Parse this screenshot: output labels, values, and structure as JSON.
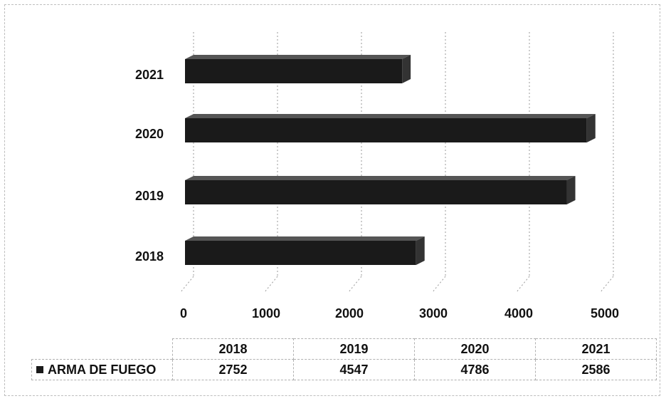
{
  "chart_data": {
    "type": "bar",
    "orientation": "horizontal",
    "three_d": true,
    "categories": [
      "2018",
      "2019",
      "2020",
      "2021"
    ],
    "series": [
      {
        "name": "ARMA DE FUEGO",
        "values": [
          2752,
          4547,
          4786,
          2586
        ],
        "color": "#1a1a1a"
      }
    ],
    "xlim": [
      0,
      5000
    ],
    "x_ticks": [
      "0",
      "1000",
      "2000",
      "3000",
      "4000",
      "5000"
    ],
    "grid": true,
    "legend": "data-table-below",
    "data_table": {
      "headers": [
        "2018",
        "2019",
        "2020",
        "2021"
      ],
      "rows": [
        {
          "label": "ARMA DE FUEGO",
          "values": [
            "2752",
            "4547",
            "4786",
            "2586"
          ]
        }
      ]
    }
  }
}
